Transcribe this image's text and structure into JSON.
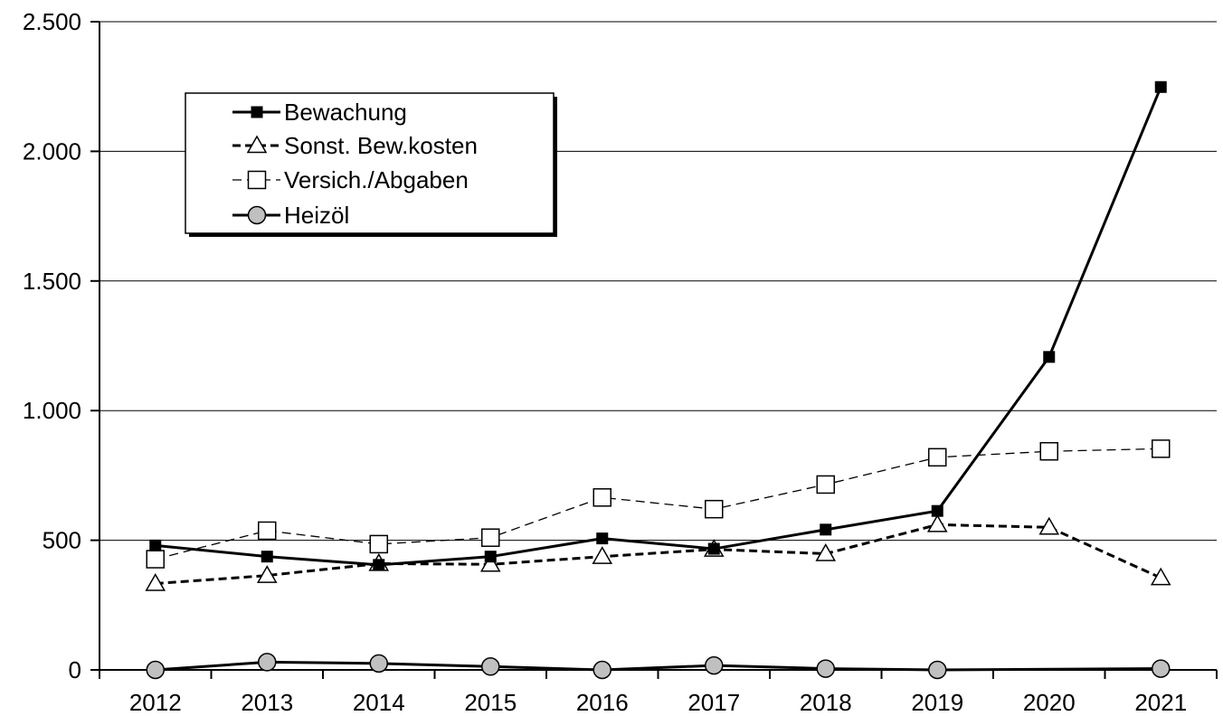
{
  "chart_data": {
    "type": "line",
    "title": "",
    "xlabel": "",
    "ylabel": "",
    "categories": [
      "2012",
      "2013",
      "2014",
      "2015",
      "2016",
      "2017",
      "2018",
      "2019",
      "2020",
      "2021"
    ],
    "ylim": [
      0,
      2500
    ],
    "y_ticks": [
      0,
      500,
      1000,
      1500,
      2000,
      2500
    ],
    "y_tick_labels": [
      "0",
      "500",
      "1.000",
      "1.500",
      "2.000",
      "2.500"
    ],
    "grid": "horizontal",
    "legend_position": "top-left",
    "series": [
      {
        "name": "Bewachung",
        "values": [
          480,
          437,
          405,
          437,
          507,
          467,
          541,
          613,
          1207,
          2248
        ],
        "line_style": "solid-thick",
        "marker": "filled-square",
        "color": "#000000"
      },
      {
        "name": "Sonst. Bew.kosten",
        "values": [
          333,
          364,
          410,
          407,
          437,
          465,
          448,
          560,
          550,
          355
        ],
        "line_style": "dashed-thick",
        "marker": "open-triangle",
        "color": "#000000"
      },
      {
        "name": "Versich./Abgaben",
        "values": [
          427,
          537,
          485,
          510,
          665,
          620,
          715,
          820,
          843,
          853
        ],
        "line_style": "dashed-thin",
        "marker": "open-square",
        "color": "#000000"
      },
      {
        "name": "Heizöl",
        "values": [
          0,
          30,
          25,
          13,
          0,
          17,
          5,
          0,
          null,
          5
        ],
        "line_style": "solid-thick",
        "marker": "gray-circle",
        "color": "#000000",
        "marker_fill": "#c0c0c0"
      }
    ]
  }
}
